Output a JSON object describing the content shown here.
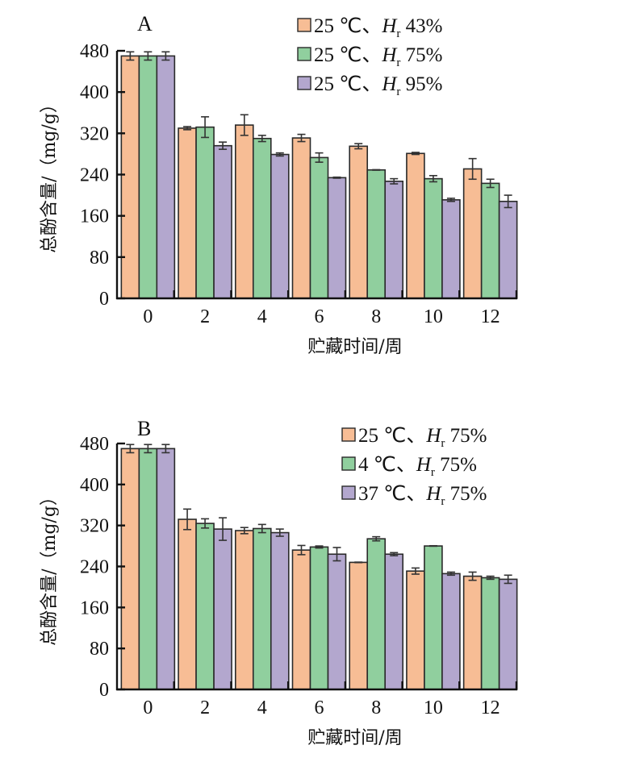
{
  "colors": {
    "series_1": "#F7BD95",
    "series_2": "#90CF9E",
    "series_3": "#B3A7CE",
    "axis": "#111111",
    "bar_stroke": "#2a2a2a",
    "error_bar": "#333333"
  },
  "chart_data": [
    {
      "type": "bar",
      "panel": "A",
      "title": "",
      "xlabel": "贮藏时间/周",
      "ylabel": "总酚含量/（mg/g）",
      "ylim": [
        0,
        480
      ],
      "yticks": [
        "0",
        "80",
        "160",
        "240",
        "320",
        "400",
        "480"
      ],
      "categories": [
        "0",
        "2",
        "4",
        "6",
        "8",
        "10",
        "12"
      ],
      "legend_position": "top-right",
      "series": [
        {
          "name": "25 ℃、Hr 43%",
          "legend": {
            "prefix": "25 ℃、",
            "var": "H",
            "sub": "r",
            "suffix": " 43%"
          },
          "values": [
            470,
            330,
            336,
            311,
            295,
            281,
            251
          ],
          "errors": [
            8,
            3,
            20,
            7,
            5,
            2,
            20
          ]
        },
        {
          "name": "25 ℃、Hr 75%",
          "legend": {
            "prefix": "25 ℃、",
            "var": "H",
            "sub": "r",
            "suffix": " 75%"
          },
          "values": [
            470,
            332,
            310,
            273,
            249,
            232,
            223
          ],
          "errors": [
            8,
            20,
            6,
            9,
            0.5,
            6,
            8
          ]
        },
        {
          "name": "25 ℃、Hr 95%",
          "legend": {
            "prefix": "25 ℃、",
            "var": "H",
            "sub": "r",
            "suffix": " 95%"
          },
          "values": [
            470,
            296,
            279,
            234,
            227,
            191,
            188
          ],
          "errors": [
            8,
            7,
            3,
            1,
            5,
            3,
            12
          ]
        }
      ]
    },
    {
      "type": "bar",
      "panel": "B",
      "title": "",
      "xlabel": "贮藏时间/周",
      "ylabel": "总酚含量/（mg/g）",
      "ylim": [
        0,
        480
      ],
      "yticks": [
        "0",
        "80",
        "160",
        "240",
        "320",
        "400",
        "480"
      ],
      "categories": [
        "0",
        "2",
        "4",
        "6",
        "8",
        "10",
        "12"
      ],
      "legend_position": "top-right",
      "series": [
        {
          "name": "25 ℃、Hr 75%",
          "legend": {
            "prefix": "25 ℃、",
            "var": "H",
            "sub": "r",
            "suffix": " 75%"
          },
          "values": [
            470,
            332,
            310,
            272,
            248,
            231,
            221
          ],
          "errors": [
            8,
            20,
            6,
            9,
            0.5,
            6,
            8
          ]
        },
        {
          "name": "4 ℃、Hr 75%",
          "legend": {
            "prefix": "4 ℃、",
            "var": "H",
            "sub": "r",
            "suffix": " 75%"
          },
          "values": [
            470,
            324,
            314,
            278,
            294,
            280,
            218
          ],
          "errors": [
            8,
            9,
            8,
            2,
            4,
            0.5,
            3
          ]
        },
        {
          "name": "37 ℃、Hr 75%",
          "legend": {
            "prefix": "37 ℃、",
            "var": "H",
            "sub": "r",
            "suffix": " 75%"
          },
          "values": [
            470,
            313,
            306,
            264,
            264,
            226,
            215
          ],
          "errors": [
            8,
            22,
            7,
            13,
            3,
            3,
            8
          ]
        }
      ]
    }
  ]
}
